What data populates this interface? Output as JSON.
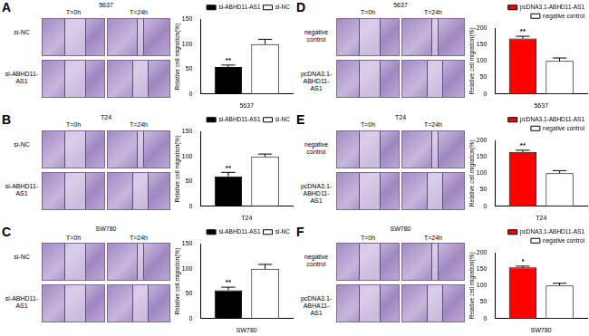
{
  "chart_data": [
    {
      "type": "bar",
      "categories": [
        "5637"
      ],
      "y_label": "Relative cell migration(%)",
      "ylim": [
        0,
        150
      ],
      "yticks": [
        0,
        50,
        100,
        150
      ],
      "grid": false,
      "legend": "top-right",
      "series": [
        {
          "name": "si-ABHD11-AS1",
          "color": "#000000",
          "values": [
            54
          ],
          "errors": [
            4
          ],
          "annotation": "**"
        },
        {
          "name": "si-NC",
          "color": "#ffffff",
          "values": [
            100
          ],
          "errors": [
            10
          ]
        }
      ]
    },
    {
      "type": "bar",
      "categories": [
        "T24"
      ],
      "y_label": "Relative cell migration(%)",
      "ylim": [
        0,
        150
      ],
      "yticks": [
        0,
        50,
        100,
        150
      ],
      "grid": false,
      "legend": "top-right",
      "series": [
        {
          "name": "si-ABHD11-AS1",
          "color": "#000000",
          "values": [
            60
          ],
          "errors": [
            8
          ],
          "annotation": "**"
        },
        {
          "name": "si-NC",
          "color": "#ffffff",
          "values": [
            100
          ],
          "errors": [
            5
          ]
        }
      ]
    },
    {
      "type": "bar",
      "categories": [
        "SW780"
      ],
      "y_label": "Relative cell migration(%)",
      "ylim": [
        0,
        150
      ],
      "yticks": [
        0,
        50,
        100,
        150
      ],
      "grid": false,
      "legend": "top-right",
      "series": [
        {
          "name": "si-ABHD11-AS1",
          "color": "#000000",
          "values": [
            57
          ],
          "errors": [
            6
          ],
          "annotation": "**"
        },
        {
          "name": "si-NC",
          "color": "#ffffff",
          "values": [
            100
          ],
          "errors": [
            9
          ]
        }
      ]
    },
    {
      "type": "bar",
      "categories": [
        "5637"
      ],
      "y_label": "Relative cell migration(%)",
      "ylim": [
        0,
        200
      ],
      "yticks": [
        0,
        50,
        100,
        150,
        200
      ],
      "grid": false,
      "legend": "top-right",
      "series": [
        {
          "name": "pcDNA3.1-ABHD11-AS1",
          "color": "#ff0000",
          "values": [
            168
          ],
          "errors": [
            7
          ],
          "annotation": "**"
        },
        {
          "name": "negative control",
          "color": "#ffffff",
          "values": [
            100
          ],
          "errors": [
            9
          ]
        }
      ]
    },
    {
      "type": "bar",
      "categories": [
        "T24"
      ],
      "y_label": "Relative cell migration(%)",
      "ylim": [
        0,
        200
      ],
      "yticks": [
        0,
        50,
        100,
        150,
        200
      ],
      "grid": false,
      "legend": "top-right",
      "series": [
        {
          "name": "pcDNA3.1-ABHD11-AS1",
          "color": "#ff0000",
          "values": [
            165
          ],
          "errors": [
            5
          ],
          "annotation": "**"
        },
        {
          "name": "negative control",
          "color": "#ffffff",
          "values": [
            100
          ],
          "errors": [
            8
          ]
        }
      ]
    },
    {
      "type": "bar",
      "categories": [
        "SW780"
      ],
      "y_label": "Relative cell migration(%)",
      "ylim": [
        0,
        200
      ],
      "yticks": [
        0,
        50,
        100,
        150,
        200
      ],
      "grid": false,
      "legend": "top-right",
      "series": [
        {
          "name": "pcDNA3.1-ABHD11-AS1",
          "color": "#ff0000",
          "values": [
            155
          ],
          "errors": [
            4
          ],
          "annotation": "*"
        },
        {
          "name": "negative control",
          "color": "#ffffff",
          "values": [
            100
          ],
          "errors": [
            7
          ]
        }
      ]
    }
  ],
  "image_panels": [
    {
      "letter": "A",
      "column_labels": [
        "T=0h",
        "T=24h"
      ],
      "center_label": "5637",
      "row_labels": [
        "si-NC",
        "si-ABHD11-AS1"
      ]
    },
    {
      "letter": "B",
      "column_labels": [
        "T=0h",
        "T=24h"
      ],
      "center_label": "T24",
      "row_labels": [
        "si-NC",
        "si-ABHD11-AS1"
      ]
    },
    {
      "letter": "C",
      "column_labels": [
        "T=0h",
        "T=24h"
      ],
      "title": "SW780",
      "row_labels": [
        "si-NC",
        "si-ABHD11-AS1"
      ]
    },
    {
      "letter": "D",
      "column_labels": [
        "T=0h",
        "T=24h"
      ],
      "center_label": "5637",
      "row_labels": [
        "negative control",
        "pcDNA3.1-ABHD11-AS1"
      ]
    },
    {
      "letter": "E",
      "column_labels": [
        "T=0h",
        "T=24h"
      ],
      "center_label": "T24",
      "row_labels": [
        "negative control",
        "pcDNA3.1-ABHD11-AS1"
      ]
    },
    {
      "letter": "F",
      "column_labels": [
        "T=0h",
        "T=24h"
      ],
      "title": "SW780",
      "row_labels": [
        "negative control",
        "pcDNA3.1-ABHA11-AS1"
      ]
    }
  ]
}
